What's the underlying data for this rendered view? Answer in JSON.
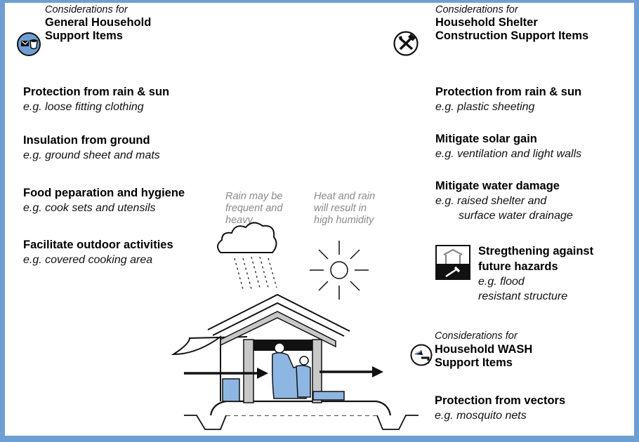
{
  "left": {
    "header": {
      "italic": "Considerations for",
      "line1": "General Household",
      "line2": "Support Items"
    },
    "items": [
      {
        "title": "Protection from rain & sun",
        "example": "e.g. loose fitting clothing"
      },
      {
        "title": "Insulation from ground",
        "example": "e.g. ground sheet and mats"
      },
      {
        "title": "Food peparation and hygiene",
        "example": "e.g. cook sets and utensils"
      },
      {
        "title": "Facilitate outdoor activities",
        "example": "e.g. covered cooking area"
      }
    ]
  },
  "right": {
    "header": {
      "italic": "Considerations for",
      "line1": "Household Shelter",
      "line2": "Construction Support Items"
    },
    "items": [
      {
        "title": "Protection from rain & sun",
        "example": "e.g. plastic sheeting"
      },
      {
        "title": "Mitigate solar gain",
        "example": "e.g. ventilation and light walls"
      },
      {
        "title": "Mitigate water damage",
        "example_line1": "e.g. raised shelter and",
        "example_line2": "surface water drainage"
      }
    ],
    "hazard": {
      "title_line1": "Stregthening against",
      "title_line2": "future hazards",
      "example_line1": "e.g. flood",
      "example_line2": "resistant structure"
    }
  },
  "wash": {
    "header": {
      "italic": "Considerations for",
      "line1": "Household WASH",
      "line2": "Support Items"
    },
    "item": {
      "title": "Protection from vectors",
      "example": "e.g. mosquito nets"
    }
  },
  "notes": {
    "rain": {
      "line1": "Rain may be",
      "line2": "frequent and",
      "line3": "heavy"
    },
    "heat": {
      "line1": "Heat and rain",
      "line2": "will result in",
      "line3": "high humidity"
    }
  },
  "icons": {
    "household": "household-items-icon",
    "tools": "tools-icon",
    "hazard": "hazard-strengthening-icon",
    "wash": "wash-icon"
  },
  "colors": {
    "frame": "#6f9fd2",
    "accent_blue": "#8eb6e3",
    "dark": "#1a1a1a",
    "roof_grey": "#c8c8c8"
  }
}
